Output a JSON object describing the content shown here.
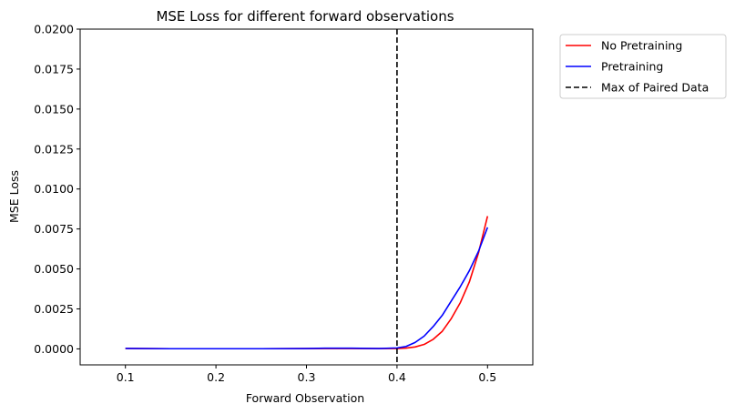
{
  "chart_data": {
    "type": "line",
    "title": "MSE Loss for different forward observations",
    "xlabel": "Forward Observation",
    "ylabel": "MSE Loss",
    "xlim": [
      0.05,
      0.55
    ],
    "ylim": [
      -0.001,
      0.02
    ],
    "x_ticks": [
      0.1,
      0.2,
      0.3,
      0.4,
      0.5
    ],
    "x_tick_labels": [
      "0.1",
      "0.2",
      "0.3",
      "0.4",
      "0.5"
    ],
    "y_ticks": [
      0.0,
      0.0025,
      0.005,
      0.0075,
      0.01,
      0.0125,
      0.015,
      0.0175,
      0.02
    ],
    "y_tick_labels": [
      "0.0000",
      "0.0025",
      "0.0050",
      "0.0075",
      "0.0100",
      "0.0125",
      "0.0150",
      "0.0175",
      "0.0200"
    ],
    "grid": false,
    "legend_position": "outside-top-right",
    "series": [
      {
        "name": "No Pretraining",
        "color": "#ff0000",
        "style": "solid",
        "x": [
          0.1,
          0.15,
          0.2,
          0.25,
          0.3,
          0.35,
          0.38,
          0.4,
          0.41,
          0.42,
          0.43,
          0.44,
          0.45,
          0.46,
          0.47,
          0.48,
          0.49,
          0.5
        ],
        "y": [
          3e-05,
          1e-05,
          1e-05,
          1e-05,
          2e-05,
          2e-05,
          2e-05,
          2e-05,
          5e-05,
          0.00012,
          0.00028,
          0.0006,
          0.0011,
          0.0019,
          0.0029,
          0.0042,
          0.006,
          0.0083
        ]
      },
      {
        "name": "Pretraining",
        "color": "#0000ff",
        "style": "solid",
        "x": [
          0.1,
          0.15,
          0.2,
          0.25,
          0.3,
          0.32,
          0.35,
          0.38,
          0.4,
          0.41,
          0.42,
          0.43,
          0.44,
          0.45,
          0.46,
          0.47,
          0.48,
          0.49,
          0.5
        ],
        "y": [
          3e-05,
          1e-05,
          1e-05,
          1e-05,
          2e-05,
          4e-05,
          4e-05,
          2e-05,
          6e-05,
          0.00015,
          0.0004,
          0.0008,
          0.0014,
          0.0021,
          0.003,
          0.0039,
          0.0049,
          0.0061,
          0.0076
        ]
      },
      {
        "name": "Max of Paired Data",
        "color": "#000000",
        "style": "dashed",
        "vline_x": 0.4
      }
    ]
  }
}
